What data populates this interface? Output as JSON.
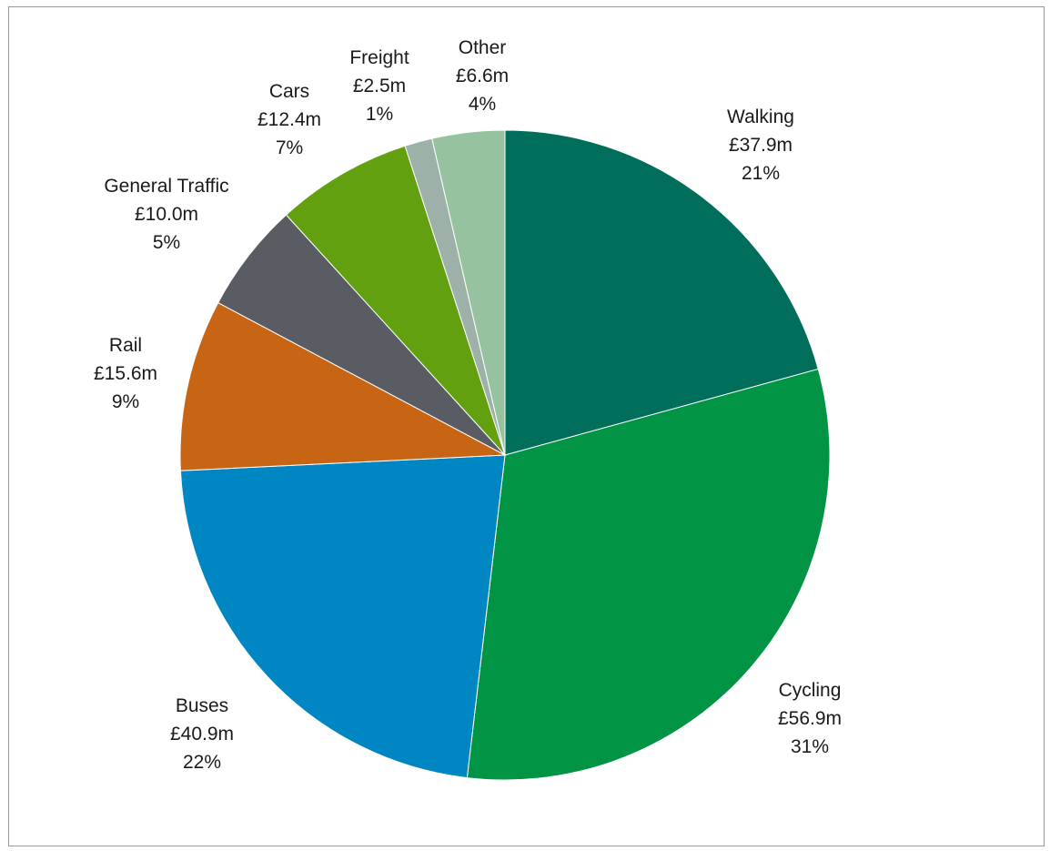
{
  "chart_data": {
    "type": "pie",
    "title": "",
    "start_angle_deg": 0,
    "direction": "clockwise",
    "legend": "none",
    "slices": [
      {
        "name": "Walking",
        "amount_label": "£37.9m",
        "percent_label": "21%",
        "value": 37.9,
        "color": "#006e5a"
      },
      {
        "name": "Cycling",
        "amount_label": "£56.9m",
        "percent_label": "31%",
        "value": 56.9,
        "color": "#009444"
      },
      {
        "name": "Buses",
        "amount_label": "£40.9m",
        "percent_label": "22%",
        "value": 40.9,
        "color": "#0086c3"
      },
      {
        "name": "Rail",
        "amount_label": "£15.6m",
        "percent_label": "9%",
        "value": 15.6,
        "color": "#c76515"
      },
      {
        "name": "General Traffic",
        "amount_label": "£10.0m",
        "percent_label": "5%",
        "value": 10.0,
        "color": "#595c63"
      },
      {
        "name": "Cars",
        "amount_label": "£12.4m",
        "percent_label": "7%",
        "value": 12.4,
        "color": "#63a00f"
      },
      {
        "name": "Freight",
        "amount_label": "£2.5m",
        "percent_label": "1%",
        "value": 2.5,
        "color": "#9db1a8"
      },
      {
        "name": "Other",
        "amount_label": "£6.6m",
        "percent_label": "4%",
        "value": 6.6,
        "color": "#96c29f"
      }
    ]
  }
}
